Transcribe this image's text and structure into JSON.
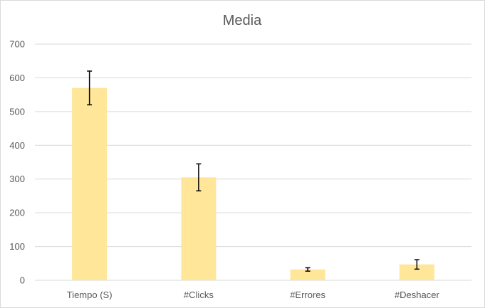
{
  "chart_data": {
    "type": "bar",
    "title": "Media",
    "xlabel": "",
    "ylabel": "",
    "categories": [
      "Tiempo (S)",
      "#Clicks",
      "#Errores",
      "#Deshacer"
    ],
    "values": [
      570,
      305,
      32,
      47
    ],
    "error": [
      50,
      40,
      5,
      14
    ],
    "ylim": [
      0,
      700
    ],
    "yticks": [
      0,
      100,
      200,
      300,
      400,
      500,
      600,
      700
    ],
    "grid": true,
    "legend": "none",
    "bar_color": "#ffe699",
    "error_color": "#000000"
  }
}
